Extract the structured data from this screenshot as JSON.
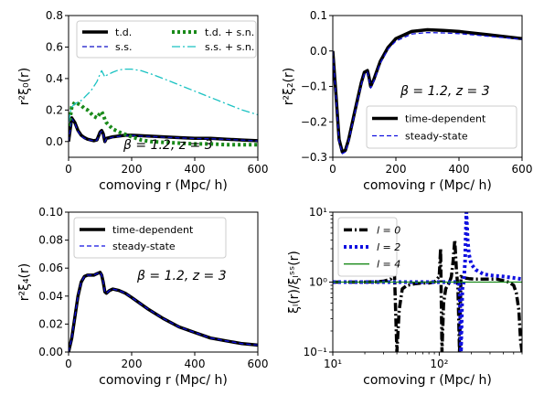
{
  "chart_data": [
    {
      "type": "line",
      "ylabel": "r²ξ₀(r)",
      "xlabel": "comoving r (Mpc/ h)",
      "xlim": [
        0,
        600
      ],
      "ylim": [
        -0.1,
        0.8
      ],
      "xticks": [
        "0",
        "200",
        "400",
        "600"
      ],
      "yticks": [
        "0.0",
        "0.2",
        "0.4",
        "0.6",
        "0.8"
      ],
      "annotation": "β = 1.2,    z = 3",
      "legend_placement": "top",
      "series": [
        {
          "name": "t.d.",
          "color": "#000000",
          "style": "solid",
          "x": [
            0,
            10,
            20,
            30,
            40,
            50,
            60,
            70,
            80,
            90,
            100,
            105,
            110,
            115,
            120,
            130,
            140,
            160,
            180,
            200,
            250,
            300,
            350,
            400,
            450,
            500,
            550,
            600
          ],
          "y": [
            0.0,
            0.15,
            0.12,
            0.07,
            0.04,
            0.025,
            0.015,
            0.01,
            0.005,
            0.01,
            0.06,
            0.07,
            0.05,
            0.0,
            0.02,
            0.025,
            0.03,
            0.035,
            0.04,
            0.04,
            0.035,
            0.03,
            0.025,
            0.02,
            0.02,
            0.015,
            0.01,
            0.005
          ]
        },
        {
          "name": "s.s.",
          "color": "#1010c8",
          "style": "dashed",
          "x": [
            0,
            10,
            20,
            30,
            40,
            50,
            60,
            70,
            80,
            90,
            100,
            105,
            110,
            115,
            120,
            130,
            140,
            160,
            180,
            200,
            250,
            300,
            350,
            400,
            450,
            500,
            550,
            600
          ],
          "y": [
            0.0,
            0.145,
            0.115,
            0.065,
            0.035,
            0.02,
            0.012,
            0.008,
            0.004,
            0.008,
            0.055,
            0.065,
            0.045,
            -0.002,
            0.018,
            0.022,
            0.028,
            0.033,
            0.038,
            0.038,
            0.033,
            0.028,
            0.023,
            0.019,
            0.018,
            0.014,
            0.009,
            0.004
          ]
        },
        {
          "name": "t.d. + s.n.",
          "color": "#1a8a1a",
          "style": "dotted",
          "x": [
            0,
            5,
            10,
            20,
            30,
            40,
            50,
            60,
            70,
            80,
            90,
            100,
            105,
            110,
            115,
            120,
            130,
            140,
            160,
            180,
            200,
            230,
            260,
            300,
            350,
            400,
            450,
            500,
            550,
            600
          ],
          "y": [
            0.1,
            0.15,
            0.22,
            0.25,
            0.24,
            0.23,
            0.21,
            0.2,
            0.18,
            0.16,
            0.15,
            0.18,
            0.19,
            0.17,
            0.14,
            0.12,
            0.1,
            0.08,
            0.06,
            0.045,
            0.03,
            0.01,
            0.0,
            -0.005,
            -0.01,
            -0.015,
            -0.015,
            -0.02,
            -0.02,
            -0.02
          ]
        },
        {
          "name": "s.s. + s.n.",
          "color": "#1ac2c2",
          "style": "dashdot",
          "x": [
            0,
            5,
            10,
            20,
            30,
            40,
            50,
            60,
            70,
            80,
            90,
            100,
            105,
            110,
            115,
            120,
            140,
            160,
            180,
            200,
            230,
            260,
            300,
            350,
            400,
            450,
            500,
            550,
            600
          ],
          "y": [
            0.12,
            0.18,
            0.22,
            0.24,
            0.25,
            0.26,
            0.28,
            0.3,
            0.32,
            0.35,
            0.38,
            0.43,
            0.45,
            0.43,
            0.41,
            0.42,
            0.44,
            0.455,
            0.46,
            0.46,
            0.45,
            0.43,
            0.4,
            0.36,
            0.32,
            0.28,
            0.24,
            0.2,
            0.17
          ]
        }
      ]
    },
    {
      "type": "line",
      "ylabel": "r²ξ₂(r)",
      "xlabel": "comoving r (Mpc/ h)",
      "xlim": [
        0,
        600
      ],
      "ylim": [
        -0.3,
        0.1
      ],
      "xticks": [
        "0",
        "200",
        "400",
        "600"
      ],
      "yticks": [
        "−0.3",
        "−0.2",
        "−0.1",
        "0.0",
        "0.1"
      ],
      "annotation": "β = 1.2,    z = 3",
      "legend_placement": "lower-right",
      "series": [
        {
          "name": "time-dependent",
          "color": "#000000",
          "style": "solid",
          "x": [
            0,
            10,
            20,
            30,
            40,
            50,
            60,
            70,
            80,
            90,
            100,
            110,
            115,
            120,
            130,
            150,
            175,
            200,
            250,
            300,
            350,
            400,
            450,
            500,
            550,
            600
          ],
          "y": [
            0.0,
            -0.12,
            -0.25,
            -0.285,
            -0.28,
            -0.25,
            -0.21,
            -0.17,
            -0.13,
            -0.09,
            -0.06,
            -0.055,
            -0.075,
            -0.1,
            -0.08,
            -0.03,
            0.01,
            0.035,
            0.055,
            0.06,
            0.058,
            0.055,
            0.05,
            0.045,
            0.04,
            0.035
          ]
        },
        {
          "name": "steady-state",
          "color": "#1010e0",
          "style": "dashed",
          "x": [
            0,
            10,
            20,
            30,
            40,
            50,
            60,
            70,
            80,
            90,
            100,
            110,
            115,
            120,
            130,
            150,
            175,
            200,
            250,
            300,
            350,
            400,
            450,
            500,
            550,
            600
          ],
          "y": [
            0.0,
            -0.125,
            -0.255,
            -0.29,
            -0.285,
            -0.255,
            -0.215,
            -0.175,
            -0.135,
            -0.095,
            -0.065,
            -0.06,
            -0.08,
            -0.105,
            -0.085,
            -0.035,
            0.005,
            0.028,
            0.048,
            0.052,
            0.051,
            0.049,
            0.045,
            0.041,
            0.037,
            0.033
          ]
        }
      ]
    },
    {
      "type": "line",
      "ylabel": "r²ξ₄(r)",
      "xlabel": "comoving r (Mpc/ h)",
      "xlim": [
        0,
        600
      ],
      "ylim": [
        0.0,
        0.1
      ],
      "xticks": [
        "0",
        "200",
        "400",
        "600"
      ],
      "yticks": [
        "0.00",
        "0.02",
        "0.04",
        "0.06",
        "0.08",
        "0.10"
      ],
      "annotation": "β = 1.2,    z = 3",
      "legend_placement": "top-left",
      "series": [
        {
          "name": "time-dependent",
          "color": "#000000",
          "style": "solid",
          "x": [
            0,
            10,
            20,
            30,
            40,
            50,
            60,
            70,
            80,
            90,
            100,
            105,
            110,
            115,
            120,
            130,
            140,
            160,
            180,
            200,
            250,
            300,
            350,
            400,
            450,
            500,
            550,
            600
          ],
          "y": [
            0.0,
            0.01,
            0.025,
            0.04,
            0.05,
            0.054,
            0.055,
            0.055,
            0.055,
            0.056,
            0.057,
            0.055,
            0.05,
            0.043,
            0.042,
            0.044,
            0.045,
            0.044,
            0.042,
            0.039,
            0.031,
            0.024,
            0.018,
            0.014,
            0.01,
            0.008,
            0.006,
            0.005
          ]
        },
        {
          "name": "steady-state",
          "color": "#1010e0",
          "style": "dashed",
          "x": [
            0,
            10,
            20,
            30,
            40,
            50,
            60,
            70,
            80,
            90,
            100,
            105,
            110,
            115,
            120,
            130,
            140,
            160,
            180,
            200,
            250,
            300,
            350,
            400,
            450,
            500,
            550,
            600
          ],
          "y": [
            0.0,
            0.01,
            0.025,
            0.04,
            0.05,
            0.054,
            0.055,
            0.055,
            0.055,
            0.056,
            0.057,
            0.055,
            0.05,
            0.043,
            0.042,
            0.044,
            0.045,
            0.044,
            0.042,
            0.039,
            0.031,
            0.024,
            0.018,
            0.014,
            0.01,
            0.008,
            0.006,
            0.005
          ]
        }
      ]
    },
    {
      "type": "line",
      "xscale": "log",
      "yscale": "log",
      "ylabel": "ξₗ(r)/ξₗˢˢ(r)",
      "xlabel": "comoving r (Mpc/ h)",
      "xlim": [
        10,
        600
      ],
      "ylim": [
        0.1,
        10
      ],
      "xtick_values": [
        10,
        100
      ],
      "xticks": [
        "10¹",
        "10²"
      ],
      "ytick_values": [
        0.1,
        1,
        10
      ],
      "yticks": [
        "10⁻¹",
        "10⁰",
        "10¹"
      ],
      "legend_placement": "top-left",
      "series": [
        {
          "name": "l = 0",
          "color": "#000000",
          "style": "dashdot",
          "x": [
            10,
            15,
            20,
            25,
            30,
            35,
            38,
            40,
            42,
            45,
            50,
            60,
            70,
            80,
            90,
            100,
            103,
            106,
            110,
            115,
            120,
            125,
            130,
            135,
            140,
            145,
            150,
            155,
            160,
            170,
            190,
            220,
            260,
            300,
            350,
            400,
            450,
            500,
            530,
            560,
            580,
            600
          ],
          "y": [
            1.0,
            1.0,
            1.0,
            1.01,
            1.03,
            1.1,
            1.3,
            0.1,
            0.4,
            0.8,
            0.9,
            0.95,
            0.97,
            0.97,
            1.0,
            1.2,
            3.0,
            0.1,
            0.5,
            0.8,
            0.9,
            1.0,
            1.2,
            2.0,
            4.0,
            1.5,
            0.8,
            0.1,
            1.2,
            1.15,
            1.12,
            1.1,
            1.1,
            1.1,
            1.1,
            1.05,
            1.0,
            0.9,
            0.7,
            0.4,
            0.15,
            0.1
          ]
        },
        {
          "name": "l = 2",
          "color": "#1010e0",
          "style": "dotted",
          "x": [
            10,
            20,
            30,
            40,
            50,
            60,
            80,
            100,
            120,
            140,
            150,
            155,
            160,
            165,
            170,
            175,
            180,
            185,
            190,
            200,
            220,
            260,
            300,
            400,
            500,
            600
          ],
          "y": [
            1.0,
            1.0,
            1.0,
            1.0,
            1.0,
            1.0,
            1.0,
            1.0,
            1.0,
            1.0,
            1.0,
            0.9,
            0.1,
            0.8,
            1.0,
            2.0,
            10.0,
            4.0,
            2.5,
            1.8,
            1.5,
            1.3,
            1.25,
            1.2,
            1.15,
            1.1
          ]
        },
        {
          "name": "l = 4",
          "color": "#1a8a1a",
          "style": "solid",
          "x": [
            10,
            600
          ],
          "y": [
            1.0,
            1.0
          ]
        }
      ]
    }
  ]
}
